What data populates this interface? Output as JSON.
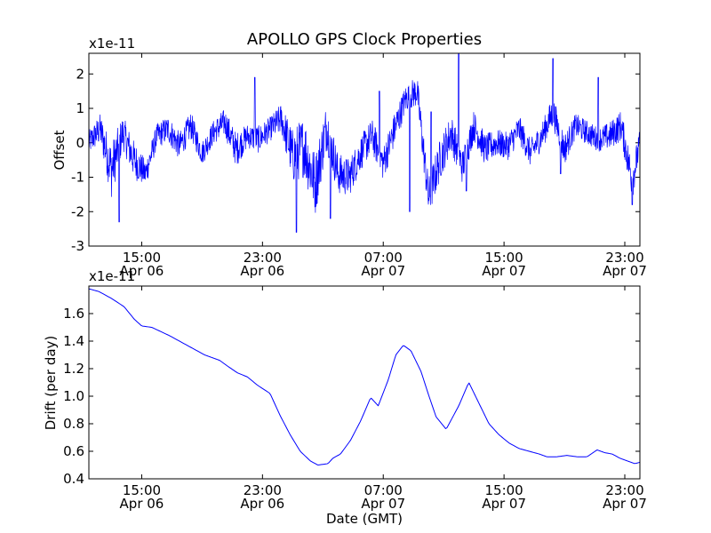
{
  "title": "APOLLO GPS Clock Properties",
  "color": "#0000ff",
  "chart_data": [
    {
      "type": "line",
      "ylabel": "Offset",
      "scale_label": "x1e-11",
      "ylim": [
        -3,
        2.6
      ],
      "yticks": [
        -3,
        -2,
        -1,
        0,
        1,
        2
      ],
      "xlim": [
        "2012-04-06T11:30",
        "2012-04-08T00:00"
      ],
      "xticks": [
        {
          "time": "2012-04-06T15:00",
          "label1": "15:00",
          "label2": "Apr 06"
        },
        {
          "time": "2012-04-06T23:00",
          "label1": "23:00",
          "label2": "Apr 06"
        },
        {
          "time": "2012-04-07T07:00",
          "label1": "07:00",
          "label2": "Apr 07"
        },
        {
          "time": "2012-04-07T15:00",
          "label1": "15:00",
          "label2": "Apr 07"
        },
        {
          "time": "2012-04-07T23:00",
          "label1": "23:00",
          "label2": "Apr 07"
        }
      ],
      "series": [
        {
          "x": [
            "2012-04-06T11:30",
            "2012-04-06T12:15",
            "2012-04-06T13:00",
            "2012-04-06T13:45",
            "2012-04-06T14:30",
            "2012-04-06T15:15",
            "2012-04-06T16:00",
            "2012-04-06T16:45",
            "2012-04-06T17:30",
            "2012-04-06T18:15",
            "2012-04-06T19:00",
            "2012-04-06T19:45",
            "2012-04-06T20:30",
            "2012-04-06T21:15",
            "2012-04-06T22:00",
            "2012-04-06T22:45",
            "2012-04-06T23:30",
            "2012-04-07T00:15",
            "2012-04-07T01:00",
            "2012-04-07T01:45",
            "2012-04-07T02:30",
            "2012-04-07T03:15",
            "2012-04-07T04:00",
            "2012-04-07T04:45",
            "2012-04-07T05:30",
            "2012-04-07T06:15",
            "2012-04-07T07:00",
            "2012-04-07T07:45",
            "2012-04-07T08:30",
            "2012-04-07T09:15",
            "2012-04-07T10:00",
            "2012-04-07T10:45",
            "2012-04-07T11:30",
            "2012-04-07T12:15",
            "2012-04-07T13:00",
            "2012-04-07T13:45",
            "2012-04-07T14:30",
            "2012-04-07T15:15",
            "2012-04-07T16:00",
            "2012-04-07T16:45",
            "2012-04-07T17:30",
            "2012-04-07T18:15",
            "2012-04-07T19:00",
            "2012-04-07T19:45",
            "2012-04-07T20:30",
            "2012-04-07T21:15",
            "2012-04-07T22:00",
            "2012-04-07T22:45",
            "2012-04-07T23:30",
            "2012-04-08T00:00"
          ],
          "y": [
            0.0,
            0.4,
            -0.8,
            0.3,
            -0.5,
            -0.9,
            0.2,
            0.4,
            -0.1,
            0.5,
            -0.3,
            0.3,
            0.6,
            -0.2,
            0.2,
            0.1,
            0.4,
            0.7,
            -0.4,
            -0.1,
            -1.2,
            0.5,
            -0.9,
            -1.0,
            -0.3,
            0.2,
            -0.6,
            0.4,
            1.3,
            1.5,
            -1.6,
            -0.5,
            0.3,
            -0.7,
            0.5,
            -0.2,
            0.0,
            -0.1,
            0.4,
            -0.3,
            0.2,
            0.9,
            -0.2,
            0.5,
            0.3,
            0.1,
            0.2,
            0.5,
            -1.1,
            0.0
          ],
          "amp": [
            0.35,
            0.45,
            0.8,
            0.5,
            0.55,
            0.4,
            0.35,
            0.4,
            0.4,
            0.4,
            0.35,
            0.35,
            0.4,
            0.5,
            0.35,
            0.4,
            0.35,
            0.45,
            0.8,
            0.9,
            0.9,
            0.7,
            0.6,
            0.55,
            0.5,
            0.5,
            0.5,
            0.5,
            0.4,
            0.45,
            0.6,
            0.6,
            0.55,
            0.5,
            0.45,
            0.45,
            0.4,
            0.4,
            0.4,
            0.4,
            0.4,
            0.45,
            0.45,
            0.35,
            0.35,
            0.35,
            0.4,
            0.45,
            0.55,
            0.4
          ]
        }
      ],
      "spikes": [
        {
          "time": "2012-04-06T13:30",
          "value": -2.3
        },
        {
          "time": "2012-04-06T22:30",
          "value": 1.9
        },
        {
          "time": "2012-04-07T01:15",
          "value": -2.6
        },
        {
          "time": "2012-04-07T03:30",
          "value": -2.2
        },
        {
          "time": "2012-04-07T06:45",
          "value": 1.5
        },
        {
          "time": "2012-04-07T08:45",
          "value": -2.0
        },
        {
          "time": "2012-04-07T10:10",
          "value": 0.9
        },
        {
          "time": "2012-04-07T12:00",
          "value": 2.6
        },
        {
          "time": "2012-04-07T12:30",
          "value": -1.4
        },
        {
          "time": "2012-04-07T18:15",
          "value": 2.45
        },
        {
          "time": "2012-04-07T18:45",
          "value": -0.9
        },
        {
          "time": "2012-04-07T21:15",
          "value": 1.9
        },
        {
          "time": "2012-04-07T23:30",
          "value": -1.8
        }
      ]
    },
    {
      "type": "line",
      "ylabel": "Drift (per day)",
      "xlabel": "Date (GMT)",
      "scale_label": "x1e-11",
      "ylim": [
        0.4,
        1.8
      ],
      "yticks": [
        0.4,
        0.6,
        0.8,
        1.0,
        1.2,
        1.4,
        1.6
      ],
      "ytick_labels": [
        "0.4",
        "0.6",
        "0.8",
        "1.0",
        "1.2",
        "1.4",
        "1.6"
      ],
      "xlim": [
        "2012-04-06T11:30",
        "2012-04-08T00:00"
      ],
      "xticks": [
        {
          "time": "2012-04-06T15:00",
          "label1": "15:00",
          "label2": "Apr 06"
        },
        {
          "time": "2012-04-06T23:00",
          "label1": "23:00",
          "label2": "Apr 06"
        },
        {
          "time": "2012-04-07T07:00",
          "label1": "07:00",
          "label2": "Apr 07"
        },
        {
          "time": "2012-04-07T15:00",
          "label1": "15:00",
          "label2": "Apr 07"
        },
        {
          "time": "2012-04-07T23:00",
          "label1": "23:00",
          "label2": "Apr 07"
        }
      ],
      "series": [
        {
          "x": [
            "2012-04-06T11:30",
            "2012-04-06T12:10",
            "2012-04-06T13:00",
            "2012-04-06T13:50",
            "2012-04-06T14:30",
            "2012-04-06T15:00",
            "2012-04-06T15:40",
            "2012-04-06T16:50",
            "2012-04-06T18:00",
            "2012-04-06T19:10",
            "2012-04-06T20:10",
            "2012-04-06T20:40",
            "2012-04-06T21:20",
            "2012-04-06T22:00",
            "2012-04-06T22:40",
            "2012-04-06T23:30",
            "2012-04-07T00:10",
            "2012-04-07T00:50",
            "2012-04-07T01:30",
            "2012-04-07T02:10",
            "2012-04-07T02:40",
            "2012-04-07T03:20",
            "2012-04-07T03:40",
            "2012-04-07T04:10",
            "2012-04-07T04:50",
            "2012-04-07T05:30",
            "2012-04-07T06:10",
            "2012-04-07T06:40",
            "2012-04-07T07:20",
            "2012-04-07T07:50",
            "2012-04-07T08:20",
            "2012-04-07T08:50",
            "2012-04-07T09:30",
            "2012-04-07T10:00",
            "2012-04-07T10:30",
            "2012-04-07T11:10",
            "2012-04-07T12:00",
            "2012-04-07T12:40",
            "2012-04-07T13:20",
            "2012-04-07T14:00",
            "2012-04-07T14:40",
            "2012-04-07T15:20",
            "2012-04-07T16:00",
            "2012-04-07T16:40",
            "2012-04-07T17:20",
            "2012-04-07T17:50",
            "2012-04-07T18:30",
            "2012-04-07T19:10",
            "2012-04-07T19:50",
            "2012-04-07T20:30",
            "2012-04-07T21:10",
            "2012-04-07T21:40",
            "2012-04-07T22:10",
            "2012-04-07T22:40",
            "2012-04-07T23:10",
            "2012-04-07T23:40",
            "2012-04-08T00:00"
          ],
          "y": [
            1.78,
            1.76,
            1.71,
            1.65,
            1.56,
            1.51,
            1.5,
            1.44,
            1.37,
            1.3,
            1.26,
            1.22,
            1.17,
            1.14,
            1.08,
            1.02,
            0.86,
            0.72,
            0.6,
            0.53,
            0.5,
            0.51,
            0.55,
            0.58,
            0.68,
            0.82,
            0.99,
            0.93,
            1.12,
            1.3,
            1.37,
            1.33,
            1.18,
            1.01,
            0.85,
            0.76,
            0.93,
            1.1,
            0.95,
            0.8,
            0.72,
            0.66,
            0.62,
            0.6,
            0.58,
            0.56,
            0.56,
            0.57,
            0.56,
            0.56,
            0.61,
            0.59,
            0.58,
            0.55,
            0.53,
            0.51,
            0.52
          ]
        }
      ]
    }
  ]
}
